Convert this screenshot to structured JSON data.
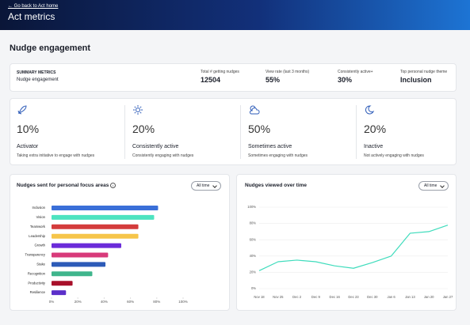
{
  "header": {
    "back_link": "← Go back to Act home",
    "title": "Act metrics"
  },
  "section_title": "Nudge engagement",
  "summary": {
    "heading": "SUMMARY METRICS",
    "subheading": "Nudge engagement",
    "metrics": [
      {
        "label": "Total # getting nudges",
        "value": "12504"
      },
      {
        "label": "View rate (last 3 months)",
        "value": "55%"
      },
      {
        "label": "Consistently active+",
        "value": "30%"
      },
      {
        "label": "Top personal nudge theme",
        "value": "Inclusion"
      }
    ]
  },
  "stats": [
    {
      "value": "10%",
      "title": "Activator",
      "description": "Taking extra initiative to engage with nudges"
    },
    {
      "value": "20%",
      "title": "Consistently active",
      "description": "Consistently engaging with nudges"
    },
    {
      "value": "50%",
      "title": "Sometimes active",
      "description": "Sometimes engaging with nudges"
    },
    {
      "value": "20%",
      "title": "Inactive",
      "description": "Not actively engaging with nudges"
    }
  ],
  "chart_data": [
    {
      "type": "hbar",
      "title": "Nudges sent for personal focus areas",
      "dropdown": "All time",
      "categories": [
        "Inclusion",
        "Vision",
        "Teamwork",
        "Leadership",
        "Growth",
        "Transparency",
        "Stake",
        "Recognition",
        "Productivity",
        "Resilience"
      ],
      "values": [
        81,
        78,
        66,
        66,
        53,
        43,
        41,
        31,
        16,
        11
      ],
      "colors": [
        "#3a6fd8",
        "#4de3c0",
        "#d43c3c",
        "#f6c54a",
        "#6a2bd9",
        "#d83a7a",
        "#2d5bb8",
        "#3fb58c",
        "#a8102a",
        "#5b2fc9"
      ],
      "xlim": [
        0,
        100
      ],
      "xticks": [
        {
          "value": 0,
          "label": "0%"
        },
        {
          "value": 20,
          "label": "20%"
        },
        {
          "value": 40,
          "label": "40%"
        },
        {
          "value": 60,
          "label": "60%"
        },
        {
          "value": 80,
          "label": "80%"
        },
        {
          "value": 100,
          "label": "100%"
        }
      ]
    },
    {
      "type": "line",
      "title": "Nudges viewed over time",
      "dropdown": "All time",
      "categories": [
        "Nov 18",
        "Nov 25",
        "Dec 2",
        "Dec 9",
        "Dec 16",
        "Dec 23",
        "Dec 30",
        "Jan 6",
        "Jan 13",
        "Jan 20",
        "Jan 27"
      ],
      "values": [
        22,
        33,
        35,
        33,
        28,
        25,
        32,
        40,
        68,
        70,
        78
      ],
      "color": "#3fdcbc",
      "grid": true,
      "ylim": [
        0,
        100
      ],
      "yticks": [
        {
          "value": 0,
          "label": "0%"
        },
        {
          "value": 20,
          "label": "20%"
        },
        {
          "value": 40,
          "label": "40%"
        },
        {
          "value": 60,
          "label": "60%"
        },
        {
          "value": 80,
          "label": "80%"
        },
        {
          "value": 100,
          "label": "100%"
        }
      ]
    }
  ]
}
